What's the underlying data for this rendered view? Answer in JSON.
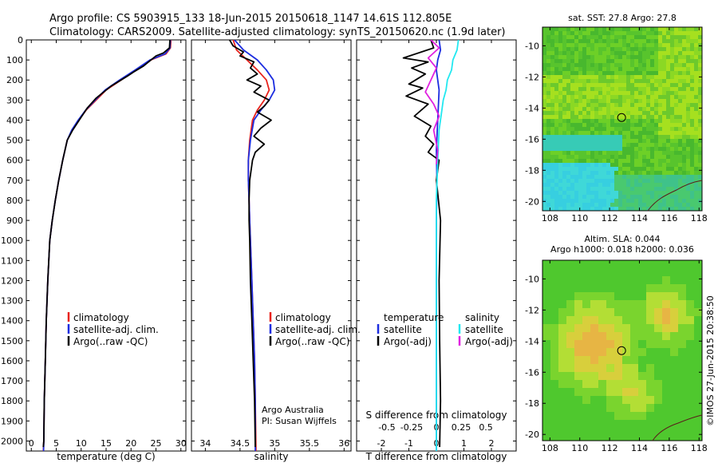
{
  "header": {
    "line1": "Argo profile: CS 5903915_133 18-Jun-2015 20150618_1147 14.61S 112.805E",
    "line2": "Climatology: CARS2009. Satellite-adjusted climatology: synTS_20150620.nc (1.9d later)"
  },
  "colors": {
    "climatology": "#e8231d",
    "satellite": "#1c2de0",
    "argo": "#000000",
    "sal_satellite": "#22e8f0",
    "sal_argo": "#e020e0"
  },
  "depth_ticks": [
    "0",
    "100",
    "200",
    "300",
    "400",
    "500",
    "600",
    "700",
    "800",
    "900",
    "1000",
    "1100",
    "1200",
    "1300",
    "1400",
    "1500",
    "1600",
    "1700",
    "1800",
    "1900",
    "2000"
  ],
  "chart_data": [
    {
      "type": "line",
      "name": "temperature-profile",
      "xlabel": "temperature (deg C)",
      "xlim": [
        -1,
        31
      ],
      "ylim": [
        2050,
        0
      ],
      "xticks": [
        "0",
        "5",
        "10",
        "15",
        "20",
        "25",
        "30"
      ],
      "xtick_values": [
        0,
        5,
        10,
        15,
        20,
        25,
        30
      ],
      "legend": [
        "climatology",
        "satellite-adj. clim.",
        "Argo(..raw -QC)"
      ],
      "series": [
        {
          "name": "climatology",
          "x": [
            28.0,
            27.9,
            27.0,
            24.0,
            21.0,
            18.0,
            15.0,
            13.0,
            11.0,
            9.5,
            8.2,
            7.2,
            6.3,
            5.5,
            4.8,
            4.2,
            3.7,
            3.3,
            3.0,
            2.8,
            2.6,
            2.5,
            2.4
          ],
          "y": [
            0,
            40,
            70,
            100,
            150,
            200,
            250,
            300,
            350,
            400,
            450,
            500,
            600,
            700,
            800,
            900,
            1000,
            1200,
            1400,
            1600,
            1800,
            2000,
            2050
          ]
        },
        {
          "name": "satellite",
          "x": [
            27.9,
            27.8,
            26.8,
            23.8,
            20.8,
            17.7,
            14.8,
            12.8,
            10.9,
            9.4,
            8.1,
            7.2,
            6.3,
            5.5,
            4.8,
            4.2,
            3.7,
            3.3,
            3.0,
            2.8,
            2.6,
            2.5,
            2.45
          ],
          "y": [
            0,
            40,
            70,
            100,
            150,
            200,
            250,
            300,
            350,
            400,
            450,
            500,
            600,
            700,
            800,
            900,
            1000,
            1200,
            1400,
            1600,
            1800,
            2000,
            2050
          ]
        },
        {
          "name": "argo",
          "x": [
            27.8,
            27.7,
            26.5,
            25.0,
            24.0,
            22.5,
            20.5,
            19.3,
            18.0,
            16.0,
            14.5,
            13.0,
            11.2,
            9.6,
            8.3,
            7.2,
            6.3,
            5.5,
            4.8,
            4.2,
            3.7,
            3.3,
            3.0,
            2.8,
            2.6,
            2.5,
            2.4
          ],
          "y": [
            0,
            40,
            65,
            80,
            100,
            130,
            160,
            180,
            200,
            230,
            260,
            290,
            340,
            400,
            450,
            500,
            600,
            700,
            800,
            900,
            1000,
            1200,
            1400,
            1600,
            1800,
            2000,
            2030
          ]
        }
      ]
    },
    {
      "type": "line",
      "name": "salinity-profile",
      "xlabel": "salinity",
      "xlim": [
        33.8,
        36.1
      ],
      "ylim": [
        2050,
        0
      ],
      "xticks": [
        "34",
        "34.5",
        "35",
        "35.5",
        "36"
      ],
      "xtick_values": [
        34,
        34.5,
        35,
        35.5,
        36
      ],
      "legend": [
        "climatology",
        "satellite-adj. clim.",
        "Argo(..raw -QC)"
      ],
      "annotation": [
        "Argo Australia",
        "PI: Susan Wijffels"
      ],
      "series": [
        {
          "name": "climatology",
          "x": [
            34.4,
            34.45,
            34.6,
            34.75,
            34.88,
            34.92,
            34.85,
            34.75,
            34.68,
            34.64,
            34.62,
            34.62,
            34.63,
            34.64,
            34.65,
            34.67,
            34.69,
            34.71,
            34.72,
            34.73
          ],
          "y": [
            0,
            50,
            100,
            150,
            200,
            250,
            300,
            350,
            400,
            500,
            600,
            700,
            800,
            900,
            1000,
            1200,
            1400,
            1600,
            1800,
            2050
          ]
        },
        {
          "name": "satellite",
          "x": [
            34.42,
            34.55,
            34.75,
            34.88,
            34.98,
            35.0,
            34.92,
            34.8,
            34.7,
            34.65,
            34.62,
            34.62,
            34.63,
            34.64,
            34.65,
            34.67,
            34.69,
            34.71,
            34.72,
            34.72
          ],
          "y": [
            0,
            50,
            100,
            150,
            200,
            250,
            300,
            350,
            400,
            500,
            600,
            700,
            800,
            900,
            1000,
            1200,
            1400,
            1600,
            1800,
            2050
          ]
        },
        {
          "name": "argo",
          "x": [
            34.35,
            34.4,
            34.55,
            34.5,
            34.7,
            34.65,
            34.75,
            34.6,
            34.8,
            34.7,
            34.92,
            34.85,
            34.75,
            34.95,
            34.8,
            34.7,
            34.85,
            34.72,
            34.68,
            34.64,
            34.63,
            34.63,
            34.64,
            34.65,
            34.67,
            34.69,
            34.71,
            34.72
          ],
          "y": [
            0,
            30,
            60,
            80,
            110,
            140,
            170,
            200,
            230,
            260,
            300,
            330,
            360,
            400,
            440,
            480,
            520,
            560,
            600,
            700,
            800,
            900,
            1000,
            1200,
            1400,
            1600,
            1800,
            2030
          ]
        }
      ]
    },
    {
      "type": "line",
      "name": "difference-profile",
      "xlabel": "T difference from climatology",
      "xlabel2": "S difference from climatology",
      "xlim": [
        -2.9,
        2.9
      ],
      "ylim": [
        2050,
        0
      ],
      "xticks": [
        "-2",
        "-1",
        "0",
        "1",
        "2"
      ],
      "xtick_values": [
        -2,
        -1,
        0,
        1,
        2
      ],
      "xticks2": [
        "-0.5",
        "-0.25",
        "0",
        "0.25",
        "0.5"
      ],
      "xtick2_positions": [
        -1.8,
        -0.9,
        0,
        0.9,
        1.8
      ],
      "legend_temperature": [
        "temperature",
        "satellite",
        "Argo(-adj)"
      ],
      "legend_salinity": [
        "salinity",
        "satellite",
        "Argo(-adj)"
      ],
      "series": [
        {
          "name": "temperature-satellite",
          "x": [
            0.1,
            0.15,
            0.05,
            0.0,
            0.1,
            0.05,
            0.0,
            0.02,
            0.0,
            0.0,
            0.0,
            0.0
          ],
          "y": [
            0,
            50,
            100,
            150,
            250,
            400,
            550,
            700,
            900,
            1200,
            1600,
            2050
          ]
        },
        {
          "name": "temperature-argo",
          "x": [
            -0.2,
            -0.1,
            -1.2,
            -0.3,
            -0.9,
            -0.4,
            -1.0,
            -0.5,
            -1.1,
            -0.3,
            -0.8,
            -0.2,
            -0.4,
            -0.1,
            -0.3,
            0.1,
            0.0,
            0.15,
            0.1,
            0.12,
            0.15,
            0.12
          ],
          "y": [
            0,
            40,
            90,
            110,
            140,
            170,
            220,
            240,
            280,
            320,
            380,
            430,
            480,
            520,
            560,
            600,
            700,
            900,
            1200,
            1500,
            1800,
            2030
          ]
        },
        {
          "name": "salinity-satellite",
          "x": [
            0.8,
            0.75,
            0.6,
            0.55,
            0.4,
            0.35,
            0.25,
            0.2,
            0.1,
            0.05,
            0.0,
            0.0,
            0.0,
            0.0
          ],
          "y": [
            0,
            50,
            100,
            150,
            200,
            250,
            300,
            350,
            450,
            600,
            800,
            1200,
            1600,
            2050
          ]
        },
        {
          "name": "salinity-argo",
          "x": [
            -0.2,
            0.1,
            -0.3,
            0.0,
            -0.2,
            -0.4,
            -0.1,
            0.1,
            -0.1,
            0.05,
            0.0
          ],
          "y": [
            0,
            40,
            90,
            140,
            200,
            260,
            320,
            380,
            450,
            550,
            620
          ]
        }
      ]
    }
  ],
  "map_sst": {
    "title": "sat. SST: 27.8 Argo: 27.8",
    "xticks": [
      "108",
      "110",
      "112",
      "114",
      "116",
      "118"
    ],
    "yticks": [
      "-10",
      "-12",
      "-14",
      "-16",
      "-18",
      "-20"
    ],
    "lon_range": [
      107.5,
      118.2
    ],
    "lat_range": [
      -20.6,
      -8.8
    ],
    "float_lon": 112.805,
    "float_lat": -14.61
  },
  "map_sla": {
    "title1": "Altim. SLA: 0.044",
    "title2": "Argo h1000: 0.018 h2000: 0.036",
    "xticks": [
      "108",
      "110",
      "112",
      "114",
      "116",
      "118"
    ],
    "yticks": [
      "-10",
      "-12",
      "-14",
      "-16",
      "-18",
      "-20"
    ],
    "lon_range": [
      107.5,
      118.2
    ],
    "lat_range": [
      -20.4,
      -8.8
    ],
    "float_lon": 112.805,
    "float_lat": -14.61
  },
  "footer": {
    "credit": "©IMOS 27-Jun-2015 20:38:50"
  }
}
